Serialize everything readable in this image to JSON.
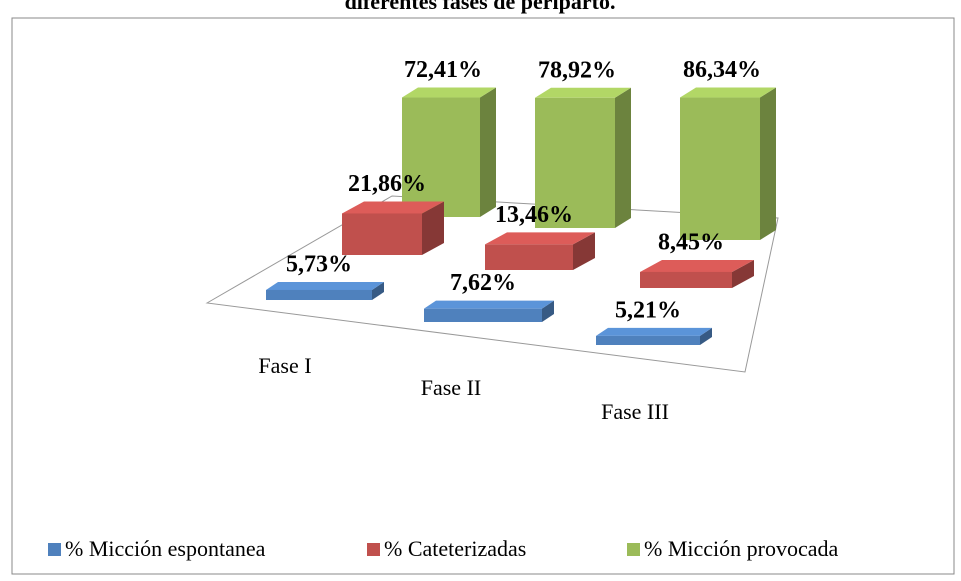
{
  "chart_data": {
    "type": "bar3d",
    "title": "diferentes fases de periparto.",
    "categories": [
      "Fase I",
      "Fase II",
      "Fase III"
    ],
    "series": [
      {
        "name": "% Micción espontanea",
        "color": "#4f81bd",
        "values": [
          5.73,
          7.62,
          5.21
        ],
        "value_labels": [
          "5,73%",
          "7,62%",
          "5,21%"
        ]
      },
      {
        "name": "% Cateterizadas",
        "color": "#c0504d",
        "values": [
          21.86,
          13.46,
          8.45
        ],
        "value_labels": [
          "21,86%",
          "13,46%",
          "8,45%"
        ]
      },
      {
        "name": "% Micción provocada",
        "color": "#9bbb59",
        "values": [
          72.41,
          78.92,
          86.34
        ],
        "value_labels": [
          "72,41%",
          "78,92%",
          "86,34%"
        ]
      }
    ],
    "legend": "bottom"
  }
}
